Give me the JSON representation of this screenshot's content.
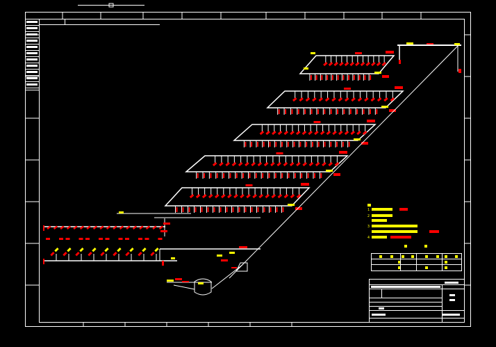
{
  "drawing": {
    "background": "#000000",
    "line_color": "#ffffff",
    "label_color": "#ff0000",
    "note_color": "#ffff00"
  },
  "notes": {
    "numbers": [
      "1",
      "2",
      "3",
      "4"
    ]
  }
}
